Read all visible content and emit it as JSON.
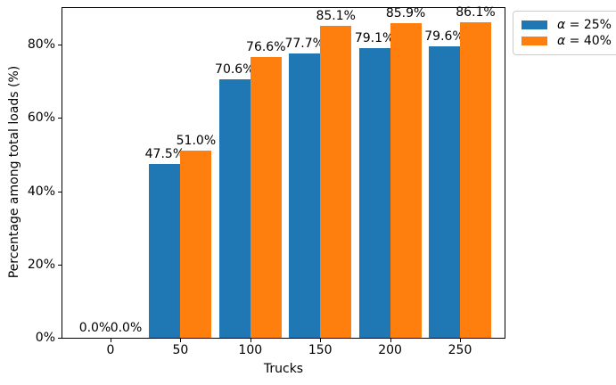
{
  "chart_data": {
    "type": "bar",
    "title": "",
    "xlabel": "Trucks",
    "ylabel": "Percentage among total loads (%)",
    "categories": [
      "0",
      "50",
      "100",
      "150",
      "200",
      "250"
    ],
    "series": [
      {
        "name": "α = 25%",
        "symbol": "α",
        "suffix": " = 25%",
        "color": "#1f77b4",
        "values": [
          0.0,
          47.5,
          70.6,
          77.7,
          79.1,
          79.6
        ],
        "labels": [
          "0.0%",
          "47.5%",
          "70.6%",
          "77.7%",
          "79.1%",
          "79.6%"
        ]
      },
      {
        "name": "α = 40%",
        "symbol": "α",
        "suffix": " = 40%",
        "color": "#ff7f0e",
        "values": [
          0.0,
          51.0,
          76.6,
          85.1,
          85.9,
          86.1
        ],
        "labels": [
          "0.0%",
          "51.0%",
          "76.6%",
          "85.1%",
          "85.9%",
          "86.1%"
        ]
      }
    ],
    "ylim": [
      0,
      90
    ],
    "ytick_values": [
      0,
      20,
      40,
      60,
      80
    ],
    "ytick_labels": [
      "0%",
      "20%",
      "40%",
      "60%",
      "80%"
    ],
    "legend_position": "upper right, outside axes",
    "grid": false,
    "colors": {
      "spine": "#000000",
      "background": "#ffffff",
      "legend_border": "#cccccc",
      "text": "#000000"
    }
  }
}
